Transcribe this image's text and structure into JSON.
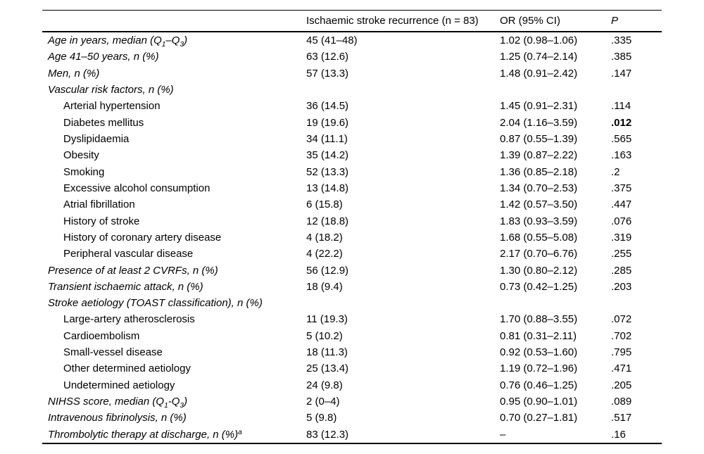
{
  "page": {
    "background_color": "#ffffff",
    "text_color": "#000000"
  },
  "table": {
    "columns": [
      {
        "label": ""
      },
      {
        "label": "Ischaemic stroke recurrence (n = 83)"
      },
      {
        "label": "OR (95% CI)"
      },
      {
        "label": "P"
      }
    ],
    "rows": [
      {
        "label": "Age in years, median (Q~1~–Q~3~)",
        "style": "italic",
        "values": [
          "45 (41–48)",
          "1.02 (0.98–1.06)",
          ".335"
        ]
      },
      {
        "label": "Age 41–50 years, n (%)",
        "style": "italic",
        "values": [
          "63 (12.6)",
          "1.25 (0.74–2.14)",
          ".385"
        ]
      },
      {
        "label": "Men, n (%)",
        "style": "italic",
        "values": [
          "57 (13.3)",
          "1.48 (0.91–2.42)",
          ".147"
        ]
      },
      {
        "label": "Vascular risk factors, n (%)",
        "style": "italic",
        "values": [
          "",
          "",
          ""
        ]
      },
      {
        "label": "Arterial hypertension",
        "style": "indent",
        "values": [
          "36 (14.5)",
          "1.45 (0.91–2.31)",
          ".114"
        ]
      },
      {
        "label": "Diabetes mellitus",
        "style": "indent",
        "values": [
          "19 (19.6)",
          "2.04 (1.16–3.59)",
          ".012"
        ],
        "p_bold": true
      },
      {
        "label": "Dyslipidaemia",
        "style": "indent",
        "values": [
          "34 (11.1)",
          "0.87 (0.55–1.39)",
          ".565"
        ]
      },
      {
        "label": "Obesity",
        "style": "indent",
        "values": [
          "35 (14.2)",
          "1.39 (0.87–2.22)",
          ".163"
        ]
      },
      {
        "label": "Smoking",
        "style": "indent",
        "values": [
          "52 (13.3)",
          "1.36 (0.85–2.18)",
          ".2"
        ]
      },
      {
        "label": "Excessive alcohol consumption",
        "style": "indent",
        "values": [
          "13 (14.8)",
          "1.34 (0.70–2.53)",
          ".375"
        ]
      },
      {
        "label": "Atrial fibrillation",
        "style": "indent",
        "values": [
          "6 (15.8)",
          "1.42 (0.57–3.50)",
          ".447"
        ]
      },
      {
        "label": "History of stroke",
        "style": "indent",
        "values": [
          "12 (18.8)",
          "1.83 (0.93–3.59)",
          ".076"
        ]
      },
      {
        "label": "History of coronary artery disease",
        "style": "indent",
        "values": [
          "4 (18.2)",
          "1.68 (0.55–5.08)",
          ".319"
        ]
      },
      {
        "label": "Peripheral vascular disease",
        "style": "indent",
        "values": [
          "4 (22.2)",
          "2.17 (0.70–6.76)",
          ".255"
        ]
      },
      {
        "label": "Presence of at least 2 CVRFs, n (%)",
        "style": "italic",
        "values": [
          "56 (12.9)",
          "1.30 (0.80–2.12)",
          ".285"
        ]
      },
      {
        "label": "Transient ischaemic attack, n (%)",
        "style": "italic",
        "values": [
          "18 (9.4)",
          "0.73 (0.42–1.25)",
          ".203"
        ]
      },
      {
        "label": "Stroke aetiology (TOAST classification), n (%)",
        "style": "italic",
        "values": [
          "",
          "",
          ""
        ]
      },
      {
        "label": "Large-artery atherosclerosis",
        "style": "indent",
        "values": [
          "11 (19.3)",
          "1.70 (0.88–3.55)",
          ".072"
        ]
      },
      {
        "label": "Cardioembolism",
        "style": "indent",
        "values": [
          "5 (10.2)",
          "0.81 (0.31–2.11)",
          ".702"
        ]
      },
      {
        "label": "Small-vessel disease",
        "style": "indent",
        "values": [
          "18 (11.3)",
          "0.92 (0.53–1.60)",
          ".795"
        ]
      },
      {
        "label": "Other determined aetiology",
        "style": "indent",
        "values": [
          "25 (13.4)",
          "1.19 (0.72–1.96)",
          ".471"
        ]
      },
      {
        "label": "Undetermined aetiology",
        "style": "indent",
        "values": [
          "24 (9.8)",
          "0.76 (0.46–1.25)",
          ".205"
        ]
      },
      {
        "label": "NIHSS score, median (Q~1~-Q~3~)",
        "style": "italic",
        "values": [
          "2 (0–4)",
          "0.95 (0.90–1.01)",
          ".089"
        ]
      },
      {
        "label": "Intravenous fibrinolysis, n (%)",
        "style": "italic",
        "values": [
          "5 (9.8)",
          "0.70 (0.27–1.81)",
          ".517"
        ]
      },
      {
        "label": "Thrombolytic therapy at discharge, n (%)^a^",
        "style": "italic",
        "values": [
          "83 (12.3)",
          "–",
          ".16"
        ]
      }
    ]
  }
}
